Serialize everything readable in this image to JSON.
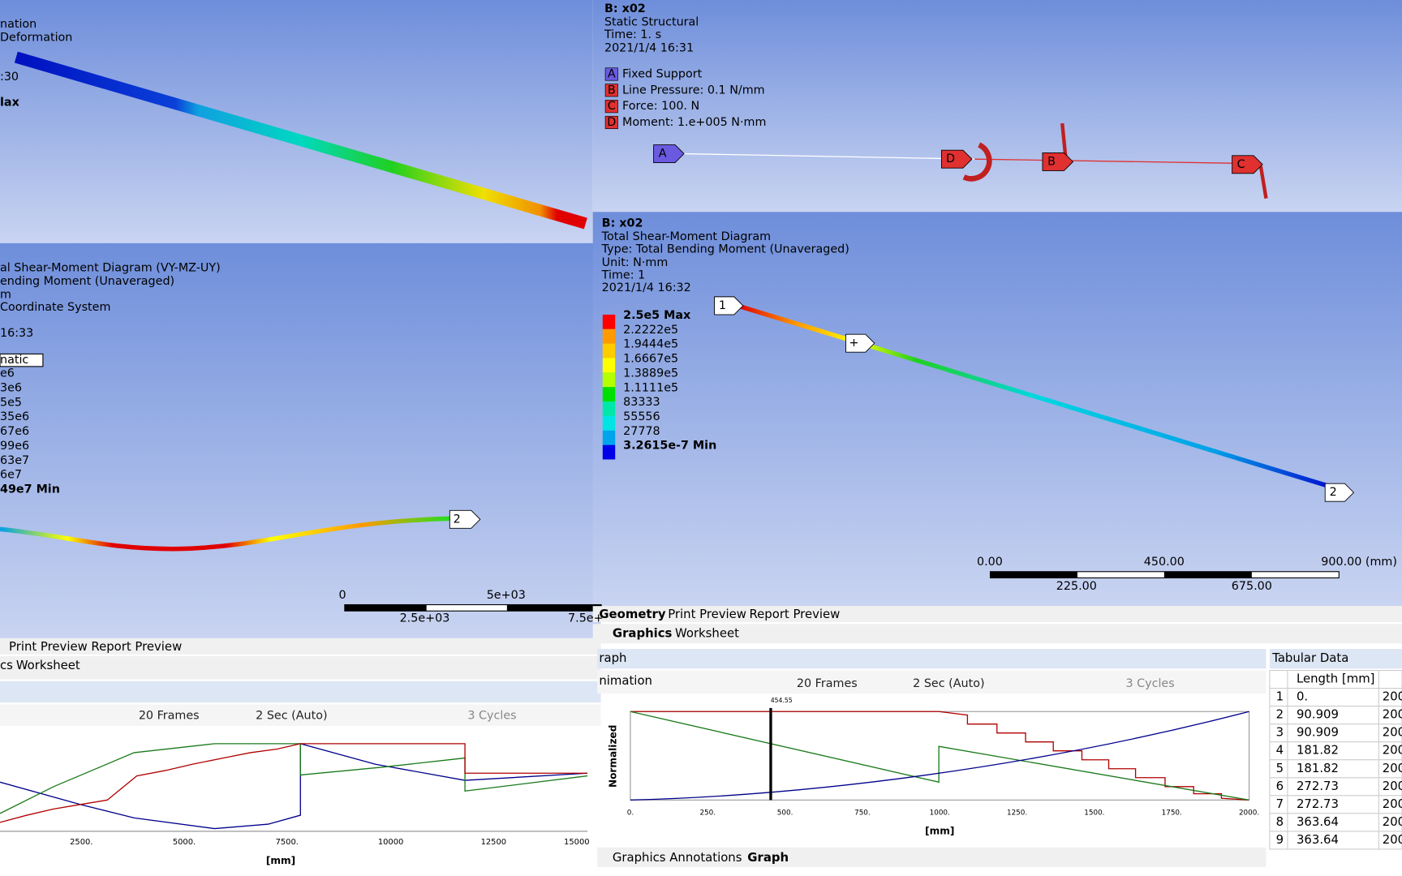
{
  "top_left": {
    "lines": [
      "nation",
      "Deformation",
      ":30",
      "lax"
    ]
  },
  "top_right": {
    "title": "B: x02",
    "lines": [
      "Static Structural",
      "Time: 1. s",
      "2021/1/4 16:31"
    ],
    "loads": [
      {
        "tag": "A",
        "text": "Fixed Support",
        "color": "#6a5ae0"
      },
      {
        "tag": "B",
        "text": "Line Pressure: 0.1 N/mm",
        "color": "#e03030"
      },
      {
        "tag": "C",
        "text": "Force: 100. N",
        "color": "#e03030"
      },
      {
        "tag": "D",
        "text": "Moment: 1.e+005 N·mm",
        "color": "#e03030"
      }
    ]
  },
  "mid_left": {
    "lines": [
      "al Shear-Moment Diagram (VY-MZ-UY)",
      "ending Moment (Unaveraged)",
      "m",
      "Coordinate System",
      "16:33"
    ],
    "legend_box": "natic",
    "legend": [
      "e6",
      "3e6",
      "5e5",
      "35e6",
      "67e6",
      "99e6",
      "63e7",
      "6e7",
      "49e7 Min"
    ],
    "probe": "2",
    "scale": [
      "0",
      "5e+03",
      "2.5e+03",
      "7.5e+"
    ]
  },
  "mid_right": {
    "title": "B: x02",
    "lines": [
      "Total Shear-Moment Diagram",
      "Type: Total Bending Moment (Unaveraged)",
      "Unit: N·mm",
      "Time: 1",
      "2021/1/4 16:32"
    ],
    "legend": [
      {
        "label": "2.5e5 Max",
        "color": "#ff0000"
      },
      {
        "label": "2.2222e5",
        "color": "#ff9a00"
      },
      {
        "label": "1.9444e5",
        "color": "#ffcc00"
      },
      {
        "label": "1.6667e5",
        "color": "#ffff00"
      },
      {
        "label": "1.3889e5",
        "color": "#b4ff00"
      },
      {
        "label": "1.1111e5",
        "color": "#00e000"
      },
      {
        "label": "83333",
        "color": "#00e8a8"
      },
      {
        "label": "55556",
        "color": "#00e4e4"
      },
      {
        "label": "27778",
        "color": "#00a4ec"
      },
      {
        "label": "3.2615e-7 Min",
        "color": "#0000e8"
      }
    ],
    "probes": [
      "1",
      "+",
      "2"
    ],
    "scale": [
      "0.00",
      "450.00",
      "900.00 (mm)",
      "225.00",
      "675.00"
    ]
  },
  "tabs_left": {
    "row1": [
      "Print Preview",
      "Report Preview"
    ],
    "row2": [
      "cs",
      "Worksheet"
    ]
  },
  "tabs_right": {
    "row1": [
      "Geometry",
      "Print Preview",
      "Report Preview"
    ],
    "row2": [
      "Graphics",
      "Worksheet"
    ]
  },
  "graph_left": {
    "toolbar": [
      "20 Frames",
      "2 Sec (Auto)",
      "3 Cycles"
    ],
    "xticks": [
      "2500.",
      "5000.",
      "7500.",
      "10000",
      "12500",
      "15000"
    ],
    "xlabel": "[mm]"
  },
  "graph_right": {
    "header": "raph",
    "animation": "nimation",
    "toolbar": [
      "20 Frames",
      "2 Sec (Auto)",
      "3 Cycles"
    ],
    "ylabel": "Normalized",
    "cursor": "454.55",
    "xticks": [
      "0.",
      "250.",
      "500.",
      "750.",
      "1000.",
      "1250.",
      "1500.",
      "1750.",
      "2000."
    ],
    "xlabel": "[mm]",
    "tabs": [
      "Graphics Annotations",
      "Graph"
    ]
  },
  "table": {
    "title": "Tabular Data",
    "header": "Length [mm]",
    "rows": [
      [
        "1",
        "0.",
        "200"
      ],
      [
        "2",
        "90.909",
        "200"
      ],
      [
        "3",
        "90.909",
        "200"
      ],
      [
        "4",
        "181.82",
        "200"
      ],
      [
        "5",
        "181.82",
        "200"
      ],
      [
        "6",
        "272.73",
        "200"
      ],
      [
        "7",
        "272.73",
        "200"
      ],
      [
        "8",
        "363.64",
        "200"
      ],
      [
        "9",
        "363.64",
        "200"
      ]
    ]
  }
}
